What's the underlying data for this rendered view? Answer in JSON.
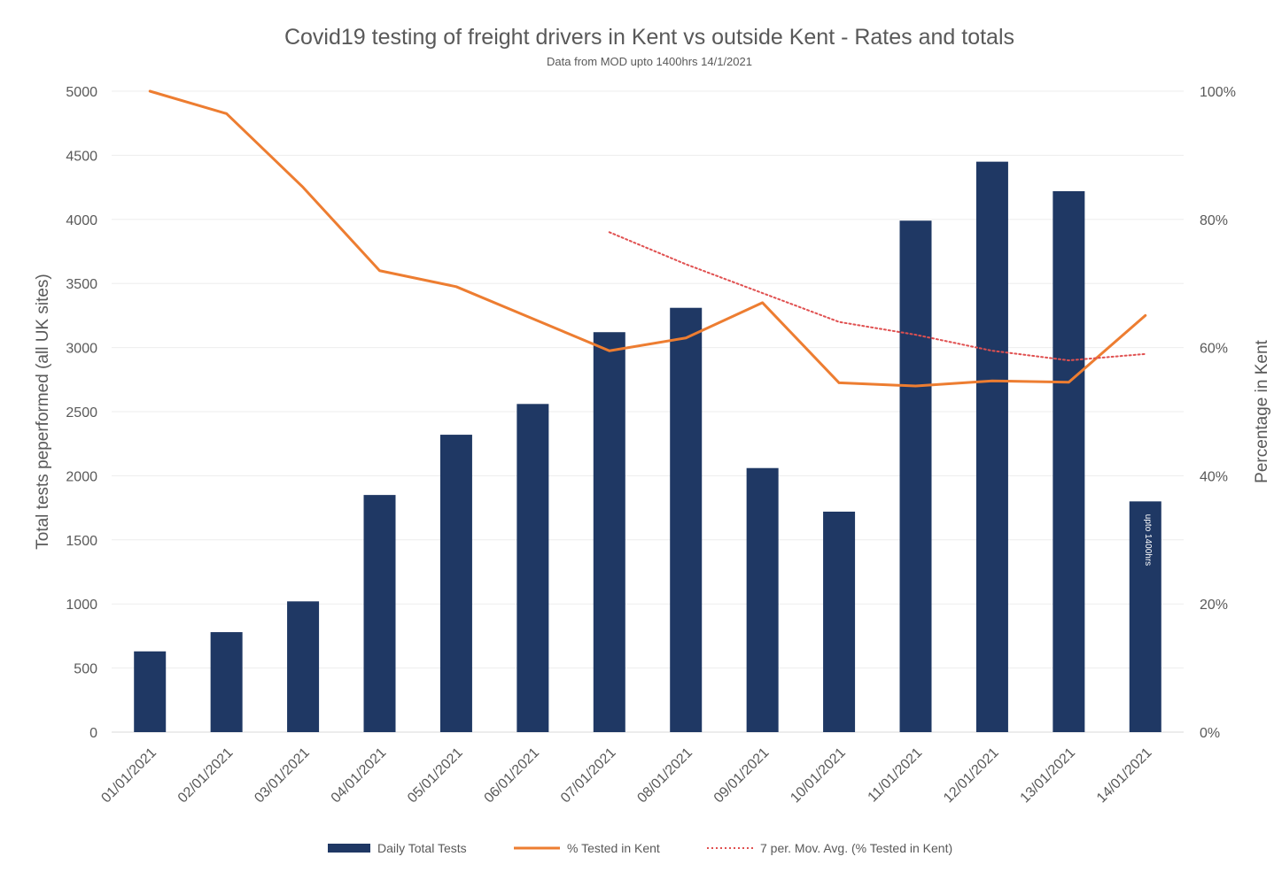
{
  "chart_data": {
    "type": "bar",
    "title": "Covid19 testing of freight drivers in Kent vs outside Kent - Rates and totals",
    "subtitle": "Data from MOD upto 1400hrs 14/1/2021",
    "ylabel": "Total tests peperformed (all UK sites)",
    "y2label": "Percentage in Kent",
    "ylim": [
      0,
      5000
    ],
    "y2lim": [
      0,
      100
    ],
    "yticks": [
      0,
      500,
      1000,
      1500,
      2000,
      2500,
      3000,
      3500,
      4000,
      4500,
      5000
    ],
    "y2ticks": [
      0,
      20,
      40,
      60,
      80,
      100
    ],
    "y2tick_labels": [
      "0%",
      "20%",
      "40%",
      "60%",
      "80%",
      "100%"
    ],
    "grid": true,
    "legend_position": "bottom",
    "categories": [
      "01/01/2021",
      "02/01/2021",
      "03/01/2021",
      "04/01/2021",
      "05/01/2021",
      "06/01/2021",
      "07/01/2021",
      "08/01/2021",
      "09/01/2021",
      "10/01/2021",
      "11/01/2021",
      "12/01/2021",
      "13/01/2021",
      "14/01/2021"
    ],
    "series": [
      {
        "name": "Daily Total Tests",
        "type": "bar",
        "axis": "left",
        "color": "#1f3864",
        "values": [
          630,
          780,
          1020,
          1850,
          2320,
          2560,
          3120,
          3310,
          2060,
          1720,
          3990,
          4450,
          4220,
          1800
        ]
      },
      {
        "name": "% Tested in Kent",
        "type": "line",
        "axis": "right",
        "color": "#ed7d31",
        "values": [
          100,
          96.5,
          85,
          72,
          69.5,
          64.5,
          59.5,
          61.5,
          67,
          54.5,
          54,
          54.8,
          54.6,
          65
        ]
      },
      {
        "name": "7 per. Mov. Avg. (% Tested in Kent)",
        "type": "line",
        "style": "dotted",
        "axis": "right",
        "color": "#e05050",
        "values": [
          null,
          null,
          null,
          null,
          null,
          null,
          78,
          73,
          68.5,
          64,
          62,
          59.5,
          58,
          59
        ]
      }
    ],
    "annotations": [
      {
        "category": "14/01/2021",
        "text": "upto 1400hrs"
      }
    ]
  }
}
